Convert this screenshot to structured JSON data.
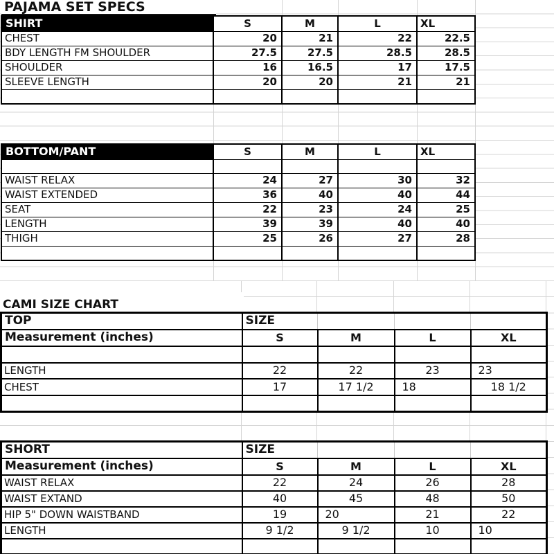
{
  "page": {
    "title": "PAJAMA SET SPECS",
    "cami_title": "CAMI  SIZE  CHART"
  },
  "shirt_table": {
    "header": "SHIRT",
    "sizes": [
      "S",
      "M",
      "L",
      "XL"
    ],
    "rows": [
      {
        "label": "CHEST",
        "values": [
          "20",
          "21",
          "22",
          "22.5"
        ]
      },
      {
        "label": "BDY LENGTH FM SHOULDER",
        "values": [
          "27.5",
          "27.5",
          "28.5",
          "28.5"
        ]
      },
      {
        "label": "SHOULDER",
        "values": [
          "16",
          "16.5",
          "17",
          "17.5"
        ]
      },
      {
        "label": "SLEEVE LENGTH",
        "values": [
          "20",
          "20",
          "21",
          "21"
        ]
      }
    ]
  },
  "bottom_table": {
    "header": "BOTTOM/PANT",
    "sizes": [
      "S",
      "M",
      "L",
      "XL"
    ],
    "rows": [
      {
        "label": "WAIST RELAX",
        "values": [
          "24",
          "27",
          "30",
          "32"
        ]
      },
      {
        "label": "WAIST EXTENDED",
        "values": [
          "36",
          "40",
          "40",
          "44"
        ]
      },
      {
        "label": "SEAT",
        "values": [
          "22",
          "23",
          "24",
          "25"
        ]
      },
      {
        "label": "LENGTH",
        "values": [
          "39",
          "39",
          "40",
          "40"
        ]
      },
      {
        "label": "THIGH",
        "values": [
          "25",
          "26",
          "27",
          "28"
        ]
      }
    ]
  },
  "top_table": {
    "header": "TOP",
    "size_label": "SIZE",
    "measure_label": "Measurement (inches)",
    "sizes": [
      "S",
      "M",
      "L",
      "XL"
    ],
    "rows": [
      {
        "label": "LENGTH",
        "values": [
          "22",
          "22",
          "23",
          "23"
        ],
        "aligns": [
          "c",
          "c",
          "c",
          "l"
        ]
      },
      {
        "label": "CHEST",
        "values": [
          "17",
          "17 1/2",
          "18",
          "18 1/2"
        ],
        "aligns": [
          "c",
          "c",
          "l",
          "c"
        ]
      }
    ]
  },
  "short_table": {
    "header": "SHORT",
    "size_label": "SIZE",
    "measure_label": "Measurement (inches)",
    "sizes": [
      "S",
      "M",
      "L",
      "XL"
    ],
    "rows": [
      {
        "label": "WAIST RELAX",
        "values": [
          "22",
          "24",
          "26",
          "28"
        ],
        "aligns": [
          "c",
          "c",
          "c",
          "c"
        ]
      },
      {
        "label": "WAIST EXTAND",
        "values": [
          "40",
          "45",
          "48",
          "50"
        ],
        "aligns": [
          "c",
          "c",
          "c",
          "c"
        ]
      },
      {
        "label": "HIP 5\" DOWN WAISTBAND",
        "values": [
          "19",
          "20",
          "21",
          "22"
        ],
        "aligns": [
          "c",
          "l",
          "c",
          "c"
        ]
      },
      {
        "label": "LENGTH",
        "values": [
          "9 1/2",
          "9 1/2",
          "10",
          "10"
        ],
        "aligns": [
          "c",
          "c",
          "c",
          "l"
        ]
      }
    ]
  }
}
